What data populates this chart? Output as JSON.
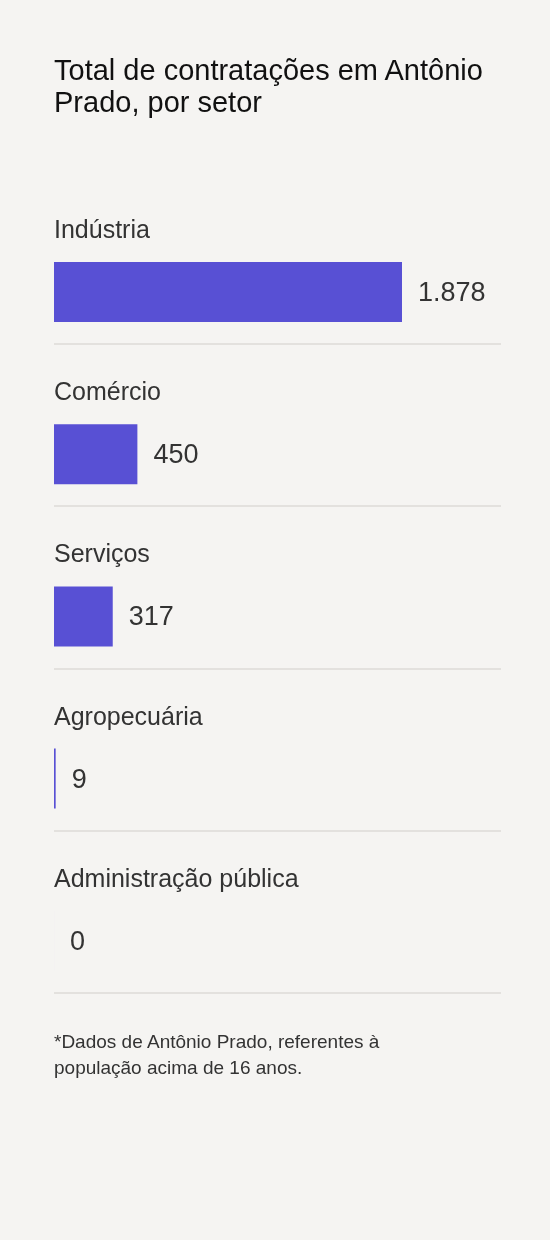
{
  "chart_data": {
    "type": "bar",
    "orientation": "horizontal",
    "title": "Total de contratações em Antônio Prado, por setor",
    "categories": [
      "Indústria",
      "Comércio",
      "Serviços",
      "Agropecuária",
      "Administração pública"
    ],
    "values": [
      1878,
      450,
      317,
      9,
      0
    ],
    "value_labels": [
      "1.878",
      "450",
      "317",
      "9",
      "0"
    ],
    "color": "#5850d4",
    "grid": "y",
    "annotations": [
      "*Dados de Antônio Prado, referentes à população acima de 16 anos."
    ]
  }
}
